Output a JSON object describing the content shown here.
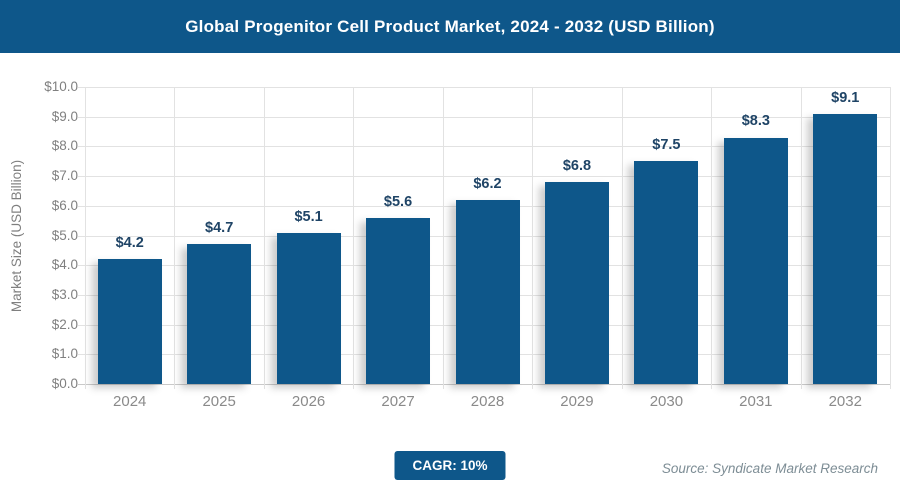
{
  "header": {
    "title": "Global Progenitor Cell Product Market, 2024 - 2032 (USD Billion)",
    "bg_color": "#0e578a"
  },
  "chart_data": {
    "type": "bar",
    "title": "Global Progenitor Cell Product Market, 2024 - 2032 (USD Billion)",
    "categories": [
      "2024",
      "2025",
      "2026",
      "2027",
      "2028",
      "2029",
      "2030",
      "2031",
      "2032"
    ],
    "values": [
      4.2,
      4.7,
      5.1,
      5.6,
      6.2,
      6.8,
      7.5,
      8.3,
      9.1
    ],
    "value_labels": [
      "$4.2",
      "$4.7",
      "$5.1",
      "$5.6",
      "$6.2",
      "$6.8",
      "$7.5",
      "$8.3",
      "$9.1"
    ],
    "xlabel": "",
    "ylabel": "Market Size (USD Billion)",
    "ylim": [
      0,
      10
    ],
    "ytick_step": 1,
    "ytick_labels": [
      "$0.0",
      "$1.0",
      "$2.0",
      "$3.0",
      "$4.0",
      "$5.0",
      "$6.0",
      "$7.0",
      "$8.0",
      "$9.0",
      "$10.0"
    ],
    "grid": "on",
    "legend": "none",
    "bar_color": "#0e578a",
    "data_label_color": "#1f4466",
    "tick_label_color": "#808080",
    "grid_color": "#e2e2e2"
  },
  "footer": {
    "cagr_label": "CAGR: 10%",
    "source": "Source: Syndicate Market Research"
  }
}
